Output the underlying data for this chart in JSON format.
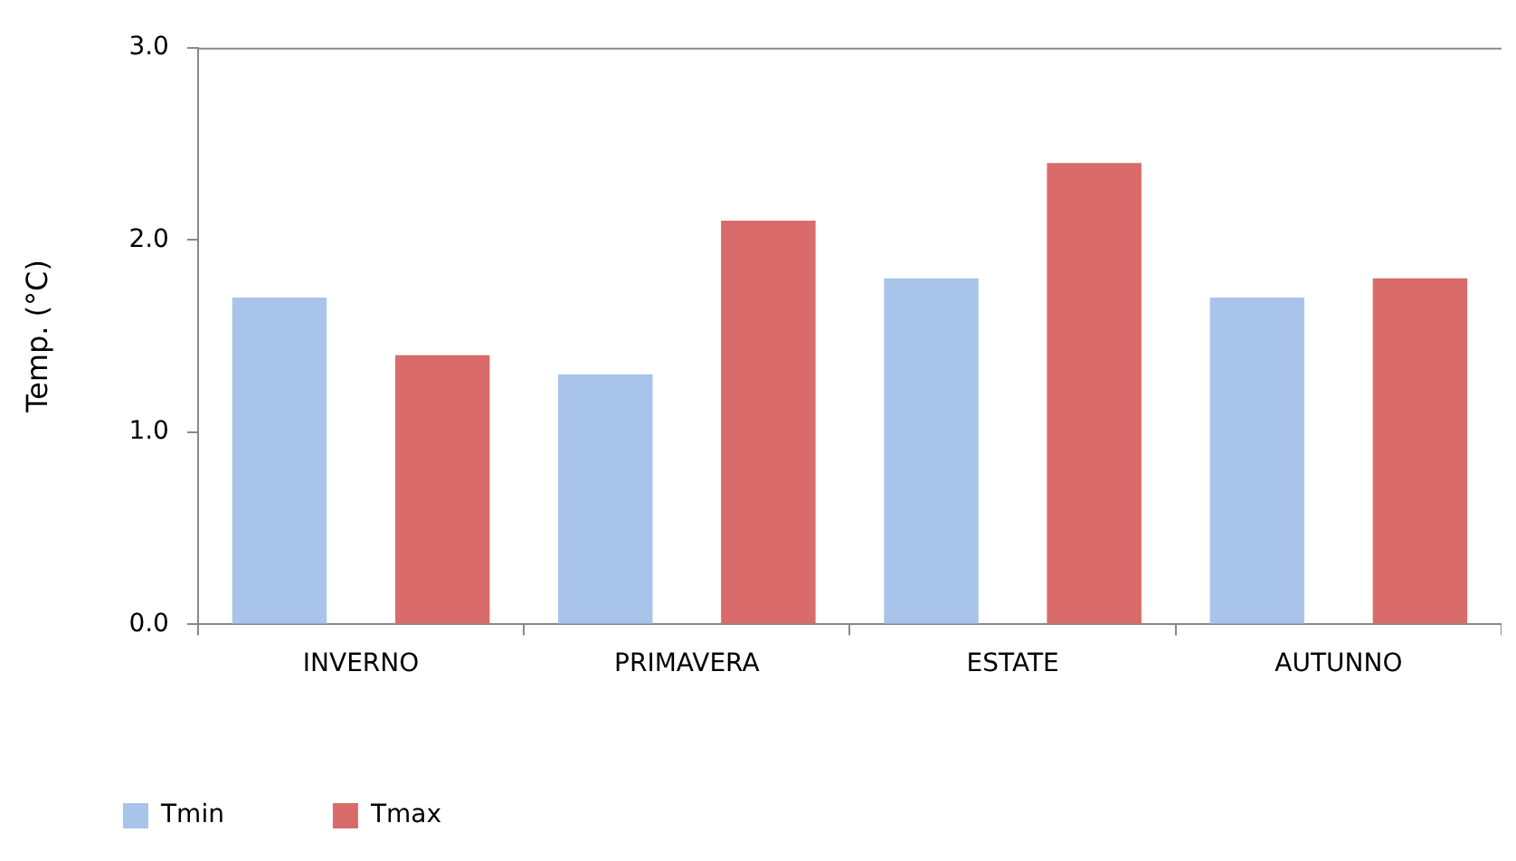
{
  "chart_data": {
    "type": "bar",
    "ylabel": "Temp. (°C)",
    "categories": [
      "INVERNO",
      "PRIMAVERA",
      "ESTATE",
      "AUTUNNO"
    ],
    "series": [
      {
        "name": "Tmin",
        "color": "#a9c4eb",
        "values": [
          1.7,
          1.3,
          1.8,
          1.7
        ]
      },
      {
        "name": "Tmax",
        "color": "#da6b6b",
        "values": [
          1.4,
          2.1,
          2.4,
          1.8
        ]
      }
    ],
    "ylim": [
      0,
      3
    ],
    "yticks": [
      {
        "value": 0,
        "label": "0.0"
      },
      {
        "value": 1,
        "label": "1.0"
      },
      {
        "value": 2,
        "label": "2.0"
      },
      {
        "value": 3,
        "label": "3.0"
      }
    ],
    "grid": false,
    "legend": "bottom left"
  }
}
